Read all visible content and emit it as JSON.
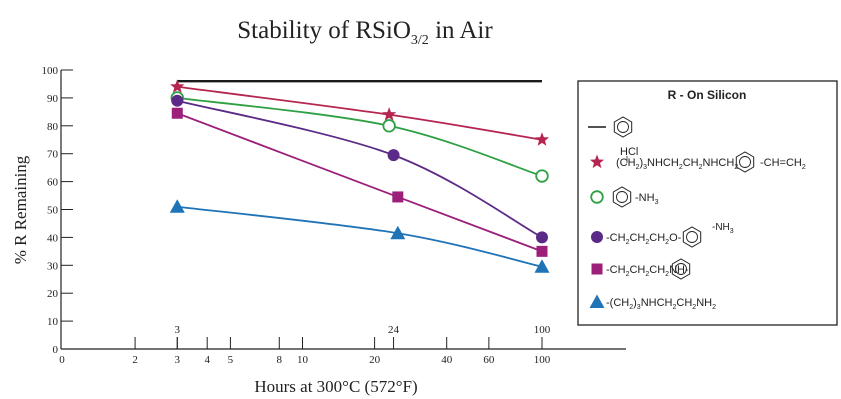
{
  "chart_data": {
    "type": "line",
    "title": {
      "main": "Stability of RSiO",
      "sub": "3/2",
      "tail": " in Air"
    },
    "ylabel": "% R Remaining",
    "xlabel": "Hours at 300°C (572°F)",
    "xscale": "log",
    "xlim": [
      1,
      140
    ],
    "ylim": [
      0,
      100
    ],
    "yticks": [
      0,
      10,
      20,
      30,
      40,
      50,
      60,
      70,
      80,
      90,
      100
    ],
    "xticks": [
      {
        "v": 2,
        "label": "2"
      },
      {
        "v": 3,
        "label": "3"
      },
      {
        "v": 4,
        "label": "4"
      },
      {
        "v": 5,
        "label": "5"
      },
      {
        "v": 8,
        "label": "8"
      },
      {
        "v": 10,
        "label": "10"
      },
      {
        "v": 20,
        "label": "20"
      },
      {
        "v": 40,
        "label": "40"
      },
      {
        "v": 60,
        "label": "60"
      },
      {
        "v": 100,
        "label": "100"
      }
    ],
    "x_origin_label": "0",
    "marker_x_labels": [
      {
        "v": 3,
        "label": "3"
      },
      {
        "v": 24,
        "label": "24"
      },
      {
        "v": 100,
        "label": "100"
      }
    ],
    "legend_title": "R - On Silicon",
    "legend_location": "right",
    "series": [
      {
        "key": "phenyl",
        "marker": "line",
        "color": "#1a1a1a",
        "x": [
          3,
          100
        ],
        "y": [
          96,
          96
        ],
        "show_markers": false
      },
      {
        "key": "amino-styryl",
        "marker": "star",
        "color": "#b5254f",
        "x": [
          3,
          23,
          100
        ],
        "y": [
          94,
          84,
          75
        ]
      },
      {
        "key": "aminophenyl",
        "marker": "open-circle",
        "color": "#2ea043",
        "x": [
          3,
          23,
          100
        ],
        "y": [
          90,
          80,
          62
        ]
      },
      {
        "key": "aminophenoxypropyl",
        "marker": "circle",
        "color": "#5b2a86",
        "x": [
          3,
          24,
          100
        ],
        "y": [
          89,
          69.5,
          40
        ]
      },
      {
        "key": "anilinopropyl",
        "marker": "square",
        "color": "#9c1f7a",
        "x": [
          3,
          25,
          100
        ],
        "y": [
          84.5,
          54.5,
          35
        ]
      },
      {
        "key": "aminoethylaminopropyl",
        "marker": "triangle",
        "color": "#1f73b7",
        "x": [
          3,
          25,
          100
        ],
        "y": [
          51,
          41.5,
          29.5
        ]
      }
    ]
  },
  "legend_text": {
    "hcl": "HCl",
    "s2": {
      "a": "(CH",
      "b": "2",
      "c": ")",
      "d": "3",
      "e": "NHCH",
      "f": "2",
      "g": "CH",
      "h": "2",
      "i": "NHCH",
      "j": "2",
      "tail1": "-CH=CH",
      "tail2": "2"
    },
    "s3": {
      "a": "-NH",
      "b": "3"
    },
    "s4": {
      "a": "-CH",
      "b": "2",
      "c": "CH",
      "d": "2",
      "e": "CH",
      "f": "2",
      "g": "O-",
      "h": "-NH",
      "i": "3"
    },
    "s5": {
      "a": "-CH",
      "b": "2",
      "c": "CH",
      "d": "2",
      "e": "CH",
      "f": "2",
      "g": "NH-"
    },
    "s6": {
      "a": "-(CH",
      "b": "2",
      "c": ")",
      "d": "3",
      "e": "NHCH",
      "f": "2",
      "g": "CH",
      "h": "2",
      "i": "NH",
      "j": "2"
    }
  }
}
